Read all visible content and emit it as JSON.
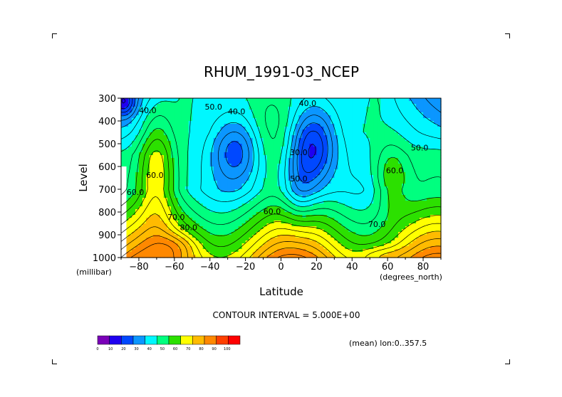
{
  "chart_data": {
    "type": "heatmap",
    "title": "RHUM_1991-03_NCEP",
    "xlabel": "Latitude",
    "ylabel": "Level",
    "x_unit": "(degrees_north)",
    "y_unit": "(millibar)",
    "xlim": [
      -90,
      90
    ],
    "ylim": [
      1000,
      300
    ],
    "x_ticks": [
      -80,
      -60,
      -40,
      -20,
      0,
      20,
      40,
      60,
      80
    ],
    "x_tick_labels": [
      "−80",
      "−60",
      "−40",
      "−20",
      "0",
      "20",
      "40",
      "60",
      "80"
    ],
    "y_ticks": [
      300,
      400,
      500,
      600,
      700,
      800,
      900,
      1000
    ],
    "y_tick_labels": [
      "300",
      "400",
      "500",
      "600",
      "700",
      "800",
      "900",
      "1000"
    ],
    "contour_interval_label": "CONTOUR INTERVAL = 5.000E+00",
    "averaging_label": "(mean) lon:0..357.5",
    "colorbar": {
      "bounds": [
        0,
        10,
        20,
        30,
        40,
        50,
        60,
        70,
        80,
        90,
        100
      ],
      "labels": [
        "0",
        "10",
        "20",
        "30",
        "40",
        "50",
        "60",
        "70",
        "80",
        "90",
        "100"
      ],
      "colors": [
        "#7a00b8",
        "#1f00f0",
        "#0048ff",
        "#0b96ff",
        "#00f7ff",
        "#00ff7f",
        "#2ce000",
        "#ffff00",
        "#ffbb00",
        "#ff8800",
        "#ff4000",
        "#ff0000"
      ]
    },
    "contour_labels": [
      {
        "text": "40.0",
        "lat": -75,
        "lev": 365
      },
      {
        "text": "50.0",
        "lat": -38,
        "lev": 350
      },
      {
        "text": "40.0",
        "lat": -25,
        "lev": 370
      },
      {
        "text": "40.0",
        "lat": 15,
        "lev": 335
      },
      {
        "text": "30.0",
        "lat": 10,
        "lev": 550
      },
      {
        "text": "50.0",
        "lat": 10,
        "lev": 665
      },
      {
        "text": "50.0",
        "lat": 78,
        "lev": 530
      },
      {
        "text": "60.0",
        "lat": 64,
        "lev": 630
      },
      {
        "text": "60.0",
        "lat": -82,
        "lev": 725
      },
      {
        "text": "60.0",
        "lat": -71,
        "lev": 650
      },
      {
        "text": "60.0",
        "lat": -5,
        "lev": 810
      },
      {
        "text": "70.0",
        "lat": -59,
        "lev": 835
      },
      {
        "text": "80.0",
        "lat": -52,
        "lev": 880
      },
      {
        "text": "70.0",
        "lat": 54,
        "lev": 865
      }
    ]
  }
}
